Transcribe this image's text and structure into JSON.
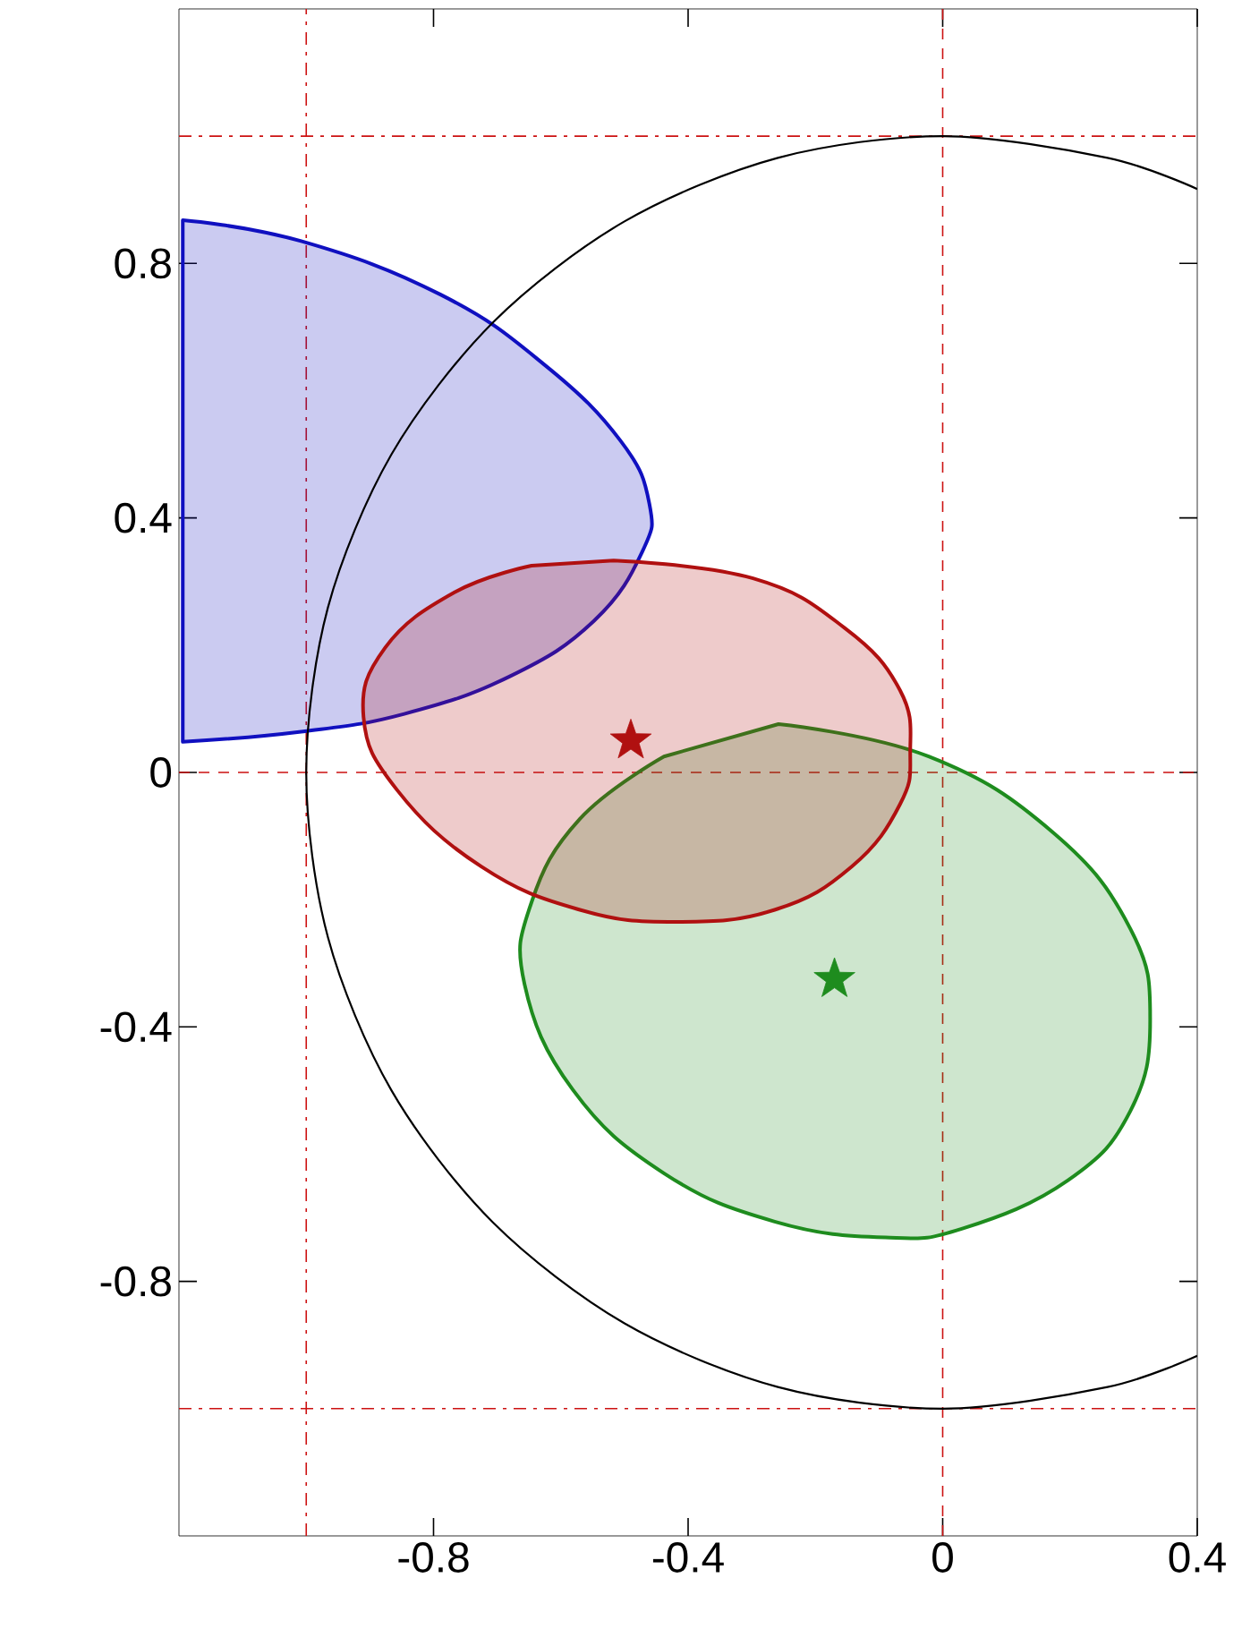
{
  "chart_data": {
    "type": "line",
    "xlim": [
      -1.2,
      0.4
    ],
    "ylim": [
      -1.2,
      1.2
    ],
    "xticks": [
      -0.8,
      -0.4,
      0,
      0.4
    ],
    "yticks": [
      -0.8,
      -0.4,
      0,
      0.4,
      0.8
    ],
    "grid": false,
    "series": [
      {
        "type": "area",
        "color": "#1e8c1e",
        "x": [
          -0.258,
          -0.022,
          0.174,
          0.295,
          0.326,
          0.295,
          0.197,
          0.031,
          -0.09,
          -0.264,
          -0.438,
          -0.581,
          -0.657,
          -0.646,
          -0.57,
          -0.438
        ],
        "values": [
          0.076,
          0.025,
          -0.095,
          -0.246,
          -0.389,
          -0.532,
          -0.641,
          -0.717,
          -0.731,
          -0.706,
          -0.63,
          -0.499,
          -0.333,
          -0.204,
          -0.073,
          0.025
        ]
      },
      {
        "type": "area",
        "color": "#1010c0",
        "x": [
          -1.194,
          -1.008,
          -0.789,
          -0.626,
          -0.506,
          -0.461,
          -0.472,
          -0.548,
          -0.68,
          -0.846,
          -1.008,
          -1.194
        ],
        "values": [
          0.868,
          0.835,
          0.751,
          0.641,
          0.521,
          0.423,
          0.347,
          0.238,
          0.151,
          0.092,
          0.064,
          0.048
        ]
      },
      {
        "type": "area",
        "color": "#b01010",
        "x": [
          -0.517,
          -0.298,
          -0.154,
          -0.067,
          -0.051,
          -0.067,
          -0.143,
          -0.264,
          -0.419,
          -0.57,
          -0.725,
          -0.857,
          -0.91,
          -0.876,
          -0.767,
          -0.646
        ],
        "values": [
          0.333,
          0.305,
          0.227,
          0.129,
          0.031,
          -0.05,
          -0.148,
          -0.216,
          -0.235,
          -0.216,
          -0.148,
          -0.028,
          0.087,
          0.196,
          0.283,
          0.325
        ]
      },
      {
        "color": "#000000",
        "x": [
          0.4,
          0.259,
          0,
          -0.259,
          -0.5,
          -0.707,
          -0.866,
          -0.966,
          -1,
          -0.966,
          -0.866,
          -0.707,
          -0.5,
          -0.259,
          0,
          0.259,
          0.4
        ],
        "values": [
          0.917,
          0.966,
          1,
          0.966,
          0.866,
          0.707,
          0.5,
          0.259,
          0,
          -0.259,
          -0.5,
          -0.707,
          -0.866,
          -0.966,
          -1,
          -0.966,
          -0.917
        ]
      },
      {
        "type": "scatter",
        "marker": "star",
        "color": "#b01010",
        "x": [
          -0.49
        ],
        "values": [
          0.05
        ]
      },
      {
        "type": "scatter",
        "marker": "star",
        "color": "#1e8c1e",
        "x": [
          -0.17
        ],
        "values": [
          -0.325
        ]
      }
    ],
    "ref_lines": [
      {
        "axis": "x",
        "value": -1,
        "color": "#cc1111",
        "line_style": "dashdot"
      },
      {
        "axis": "x",
        "value": 0,
        "color": "#cc1111",
        "line_style": "dashed"
      },
      {
        "axis": "y",
        "value": 1,
        "color": "#cc1111",
        "line_style": "dashdot"
      },
      {
        "axis": "y",
        "value": 0,
        "color": "#cc1111",
        "line_style": "dashed"
      },
      {
        "axis": "y",
        "value": -1,
        "color": "#cc1111",
        "line_style": "dashdot"
      }
    ]
  }
}
